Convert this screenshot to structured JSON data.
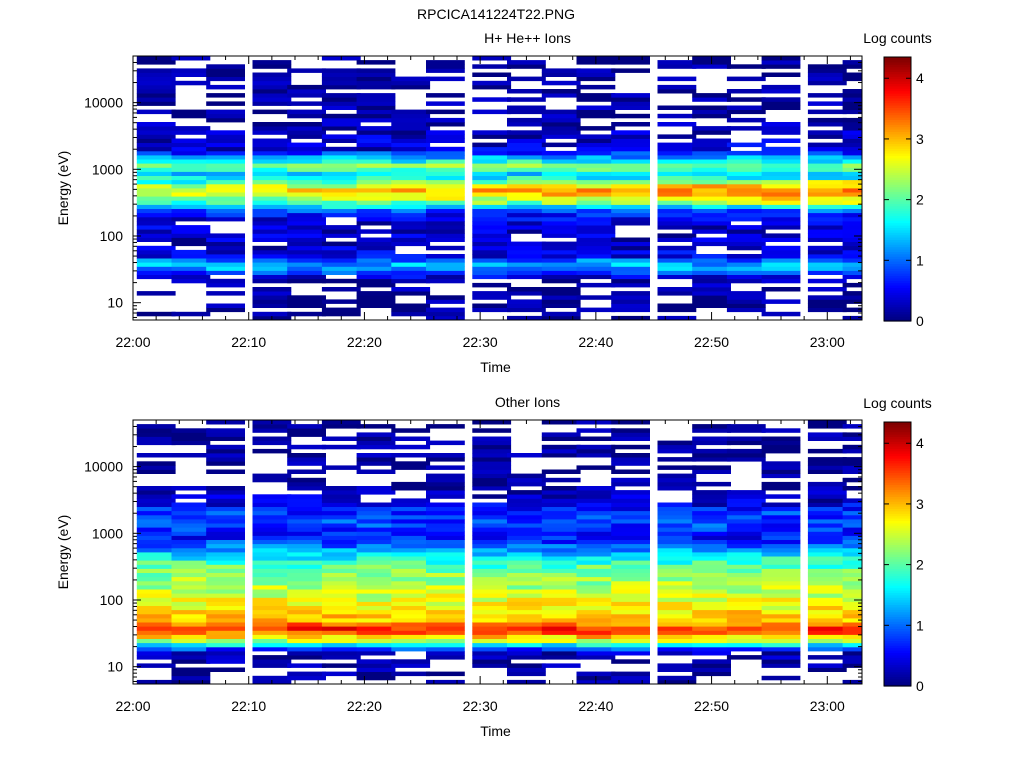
{
  "figure_title": "RPCICA141224T22.PNG",
  "chart_data": [
    {
      "type": "heatmap",
      "title": "H+ He++ Ions",
      "xlabel": "Time",
      "ylabel": "Energy (eV)",
      "x_ticks": [
        "22:00",
        "22:10",
        "22:20",
        "22:30",
        "22:40",
        "22:50",
        "23:00"
      ],
      "y_ticks": [
        "10",
        "100",
        "1000",
        "10000"
      ],
      "y_scale": "log",
      "ylim": [
        5.5,
        50000
      ],
      "xlim": [
        "22:00",
        "23:03"
      ],
      "colorbar": {
        "label": "Log counts",
        "ticks": [
          "0",
          "1",
          "2",
          "3",
          "4"
        ],
        "range": [
          0,
          4.35
        ],
        "colormap": "jet"
      },
      "time_columns": [
        "22:02",
        "22:05",
        "22:08",
        "22:12",
        "22:15",
        "22:18",
        "22:21",
        "22:24",
        "22:27",
        "22:31",
        "22:34",
        "22:37",
        "22:40",
        "22:43",
        "22:47",
        "22:50",
        "22:53",
        "22:56",
        "23:00",
        "23:03"
      ],
      "energy_profile": [
        {
          "energy_ev": 10,
          "log_counts": 0.0
        },
        {
          "energy_ev": 22,
          "log_counts": 0.1
        },
        {
          "energy_ev": 32,
          "log_counts": 1.2
        },
        {
          "energy_ev": 40,
          "log_counts": 1.3
        },
        {
          "energy_ev": 50,
          "log_counts": 0.5
        },
        {
          "energy_ev": 70,
          "log_counts": 0.2
        },
        {
          "energy_ev": 100,
          "log_counts": 0.3
        },
        {
          "energy_ev": 150,
          "log_counts": 0.3
        },
        {
          "energy_ev": 220,
          "log_counts": 0.6
        },
        {
          "energy_ev": 300,
          "log_counts": 1.8
        },
        {
          "energy_ev": 400,
          "log_counts": 2.6
        },
        {
          "energy_ev": 500,
          "log_counts": 2.9
        },
        {
          "energy_ev": 650,
          "log_counts": 2.0
        },
        {
          "energy_ev": 850,
          "log_counts": 1.4
        },
        {
          "energy_ev": 1100,
          "log_counts": 2.3
        },
        {
          "energy_ev": 1400,
          "log_counts": 1.5
        },
        {
          "energy_ev": 2000,
          "log_counts": 0.4
        },
        {
          "energy_ev": 5000,
          "log_counts": 0.1
        },
        {
          "energy_ev": 15000,
          "log_counts": 0.0
        },
        {
          "energy_ev": 40000,
          "log_counts": 0.0
        }
      ],
      "peak_energy_ev": 450,
      "peak_log_counts": 3.6
    },
    {
      "type": "heatmap",
      "title": "Other Ions",
      "xlabel": "Time",
      "ylabel": "Energy (eV)",
      "x_ticks": [
        "22:00",
        "22:10",
        "22:20",
        "22:30",
        "22:40",
        "22:50",
        "23:00"
      ],
      "y_ticks": [
        "10",
        "100",
        "1000",
        "10000"
      ],
      "y_scale": "log",
      "ylim": [
        5.5,
        50000
      ],
      "xlim": [
        "22:00",
        "23:03"
      ],
      "colorbar": {
        "label": "Log counts",
        "ticks": [
          "0",
          "1",
          "2",
          "3",
          "4"
        ],
        "range": [
          0,
          4.35
        ],
        "colormap": "jet"
      },
      "time_columns": [
        "22:02",
        "22:05",
        "22:08",
        "22:12",
        "22:15",
        "22:18",
        "22:21",
        "22:24",
        "22:27",
        "22:31",
        "22:34",
        "22:37",
        "22:40",
        "22:43",
        "22:47",
        "22:50",
        "22:53",
        "22:56",
        "23:00",
        "23:03"
      ],
      "energy_profile": [
        {
          "energy_ev": 10,
          "log_counts": 0.0
        },
        {
          "energy_ev": 16,
          "log_counts": 0.2
        },
        {
          "energy_ev": 20,
          "log_counts": 1.2
        },
        {
          "energy_ev": 25,
          "log_counts": 2.5
        },
        {
          "energy_ev": 32,
          "log_counts": 3.4
        },
        {
          "energy_ev": 38,
          "log_counts": 3.7
        },
        {
          "energy_ev": 50,
          "log_counts": 2.9
        },
        {
          "energy_ev": 70,
          "log_counts": 2.8
        },
        {
          "energy_ev": 100,
          "log_counts": 2.6
        },
        {
          "energy_ev": 150,
          "log_counts": 2.4
        },
        {
          "energy_ev": 250,
          "log_counts": 2.2
        },
        {
          "energy_ev": 400,
          "log_counts": 1.8
        },
        {
          "energy_ev": 600,
          "log_counts": 1.1
        },
        {
          "energy_ev": 900,
          "log_counts": 0.5
        },
        {
          "energy_ev": 1300,
          "log_counts": 0.8
        },
        {
          "energy_ev": 2000,
          "log_counts": 0.8
        },
        {
          "energy_ev": 2800,
          "log_counts": 0.4
        },
        {
          "energy_ev": 5000,
          "log_counts": 0.0
        },
        {
          "energy_ev": 40000,
          "log_counts": 0.0
        }
      ],
      "peak_energy_ev": 38,
      "peak_log_counts": 3.8
    }
  ]
}
